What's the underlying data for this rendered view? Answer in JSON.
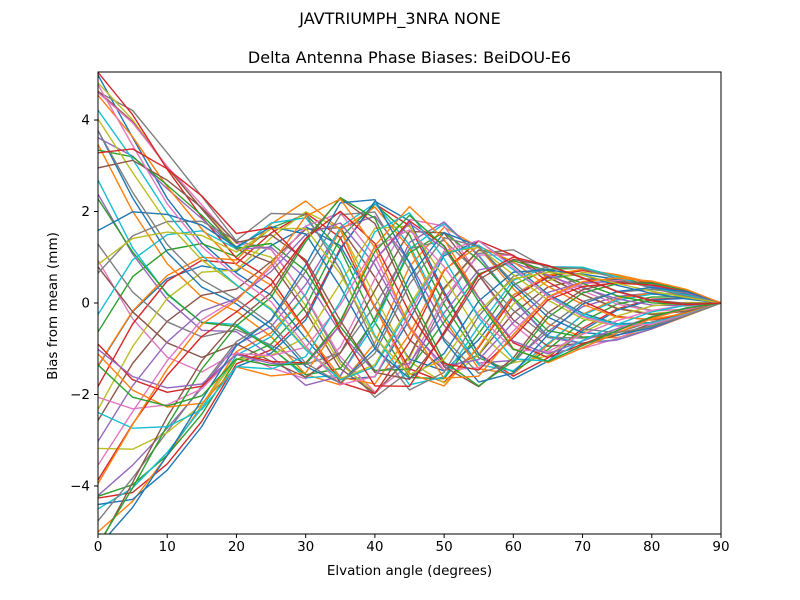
{
  "figure": {
    "suptitle": "JAVTRIUMPH_3NRA NONE",
    "background": "#ffffff",
    "text_color": "#000000"
  },
  "chart_data": {
    "type": "line",
    "title": "Delta Antenna Phase Biases: BeiDOU-E6",
    "xlabel": "Elvation angle (degrees)",
    "ylabel": "Bias from mean (mm)",
    "xlim": [
      0,
      90
    ],
    "ylim": [
      -5.05,
      5.05
    ],
    "xtick_values": [
      0,
      10,
      20,
      30,
      40,
      50,
      60,
      70,
      80,
      90
    ],
    "xtick_labels": [
      "0",
      "10",
      "20",
      "30",
      "40",
      "50",
      "60",
      "70",
      "80",
      "90"
    ],
    "ytick_values": [
      -4,
      -2,
      0,
      2,
      4
    ],
    "ytick_labels": [
      "−4",
      "−2",
      "0",
      "2",
      "4"
    ],
    "grid": false,
    "legend": "none",
    "n_series": 54,
    "x": [
      0,
      5,
      10,
      15,
      20,
      25,
      30,
      35,
      40,
      45,
      50,
      55,
      60,
      65,
      70,
      75,
      80,
      85,
      90
    ],
    "envelope_upper": [
      5.4,
      4.35,
      3.25,
      2.4,
      1.55,
      1.95,
      2.2,
      2.35,
      2.3,
      2.15,
      1.85,
      1.5,
      1.15,
      0.9,
      0.8,
      0.65,
      0.5,
      0.3,
      0
    ],
    "envelope_lower": [
      -5.4,
      -4.5,
      -3.6,
      -2.7,
      -1.5,
      -1.55,
      -1.8,
      -1.95,
      -2.05,
      -2.0,
      -1.9,
      -1.8,
      -1.65,
      -1.4,
      -1.05,
      -0.85,
      -0.6,
      -0.3,
      0
    ],
    "phase_profile_rad": [
      0,
      0.25,
      0.5,
      0.75,
      0.95,
      1.35,
      1.95,
      2.7,
      3.5,
      4.35,
      5.2,
      6.0,
      6.75,
      7.4,
      7.9,
      8.3,
      8.6,
      8.8,
      8.9
    ],
    "series_rule": {
      "model": "phase-braid",
      "phase_stride": 7,
      "direction": "alternating",
      "amp_min": 0.8,
      "amp_max": 1.0,
      "wobble": 0.06,
      "all_converge_to": 0
    },
    "color_cycle": [
      "#1f77b4",
      "#ff7f0e",
      "#2ca02c",
      "#d62728",
      "#9467bd",
      "#8c564b",
      "#e377c2",
      "#7f7f7f",
      "#bcbd22",
      "#17becf"
    ],
    "line_width": 1.4,
    "spine_color": "#000000",
    "tick_color": "#000000"
  }
}
